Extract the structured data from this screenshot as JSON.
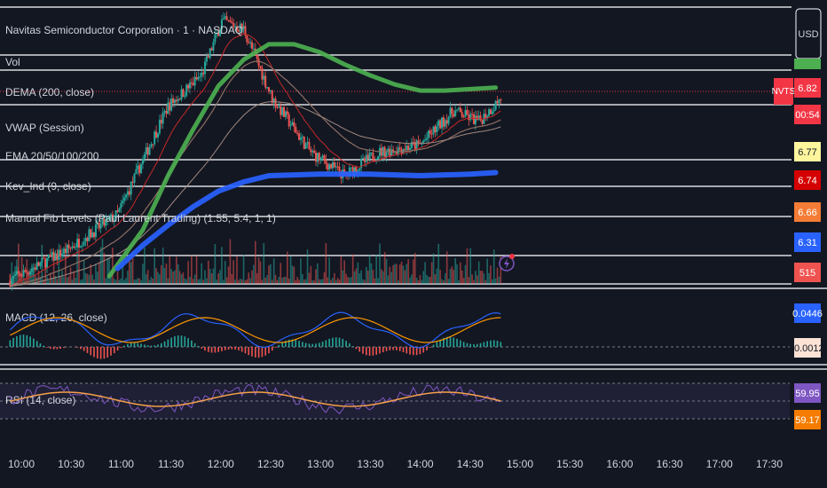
{
  "header": {
    "symbol_title": "Navitas Semiconductor Corporation · 1 · NASDAQ",
    "currency_button": "USD"
  },
  "legend": [
    "Vol",
    "DEMA (200, close)",
    "VWAP (Session)",
    "EMA 20/50/100/200",
    "Kev_Ind (9, close)",
    "Manual Fib Levels (Paul Laurent Trading) (1.55, 5.4, 1, 1)"
  ],
  "price_badges": [
    {
      "label": "6.82",
      "color": "#f23645",
      "text_color": "#ffffff"
    },
    {
      "label": "00:54",
      "color": "#f23645",
      "text_color": "#ffffff"
    },
    {
      "label": "6.77",
      "color": "#fff59d",
      "text_color": "#131722"
    },
    {
      "label": "6.74",
      "color": "#d50000",
      "text_color": "#ffffff"
    },
    {
      "label": "6.66",
      "color": "#f57c36",
      "text_color": "#ffffff"
    },
    {
      "label": "6.31",
      "color": "#2962ff",
      "text_color": "#ffffff"
    },
    {
      "label": "515",
      "color": "#ef5350",
      "text_color": "#ffffff"
    }
  ],
  "ticker_tag": {
    "label": "NVTS",
    "color": "#f23645"
  },
  "macd": {
    "title": "MACD (12, 26, close)",
    "badges": [
      {
        "label": "0.0446",
        "color": "#2962ff",
        "text_color": "#ffffff"
      },
      {
        "label": "-0.0012",
        "color": "#fbe2d5",
        "text_color": "#131722"
      }
    ]
  },
  "rsi": {
    "title": "RSI (14, close)",
    "badges": [
      {
        "label": "59.95",
        "color": "#7e57c2",
        "text_color": "#ffffff"
      },
      {
        "label": "59.17",
        "color": "#f57c00",
        "text_color": "#ffffff"
      }
    ]
  },
  "time_labels": [
    "10:00",
    "10:30",
    "11:00",
    "11:30",
    "12:00",
    "12:30",
    "13:00",
    "13:30",
    "14:00",
    "14:30",
    "15:00",
    "15:30",
    "16:00",
    "16:30",
    "17:00",
    "17:30"
  ],
  "chart_data": {
    "type": "line",
    "series": [
      {
        "name": "DEMA (200, close)",
        "color": "#4caf50",
        "x": [
          "10:55",
          "11:15",
          "11:30",
          "11:45",
          "12:00",
          "12:15",
          "12:30",
          "12:45",
          "13:00",
          "13:15",
          "13:30",
          "13:45",
          "14:00",
          "14:15",
          "14:30",
          "14:45"
        ],
        "y": [
          5.65,
          5.95,
          6.3,
          6.6,
          6.88,
          7.05,
          7.15,
          7.15,
          7.1,
          7.02,
          6.95,
          6.89,
          6.85,
          6.85,
          6.86,
          6.87
        ]
      },
      {
        "name": "EMA 200",
        "color": "#2962ff",
        "x": [
          "11:00",
          "11:15",
          "11:30",
          "11:45",
          "12:00",
          "12:15",
          "12:30",
          "13:00",
          "13:30",
          "14:00",
          "14:30",
          "14:45"
        ],
        "y": [
          5.7,
          5.85,
          5.98,
          6.1,
          6.2,
          6.26,
          6.3,
          6.31,
          6.31,
          6.3,
          6.31,
          6.32
        ]
      }
    ],
    "xlim": [
      "09:50",
      "17:40"
    ],
    "ylim": [
      5.6,
      7.35
    ]
  }
}
